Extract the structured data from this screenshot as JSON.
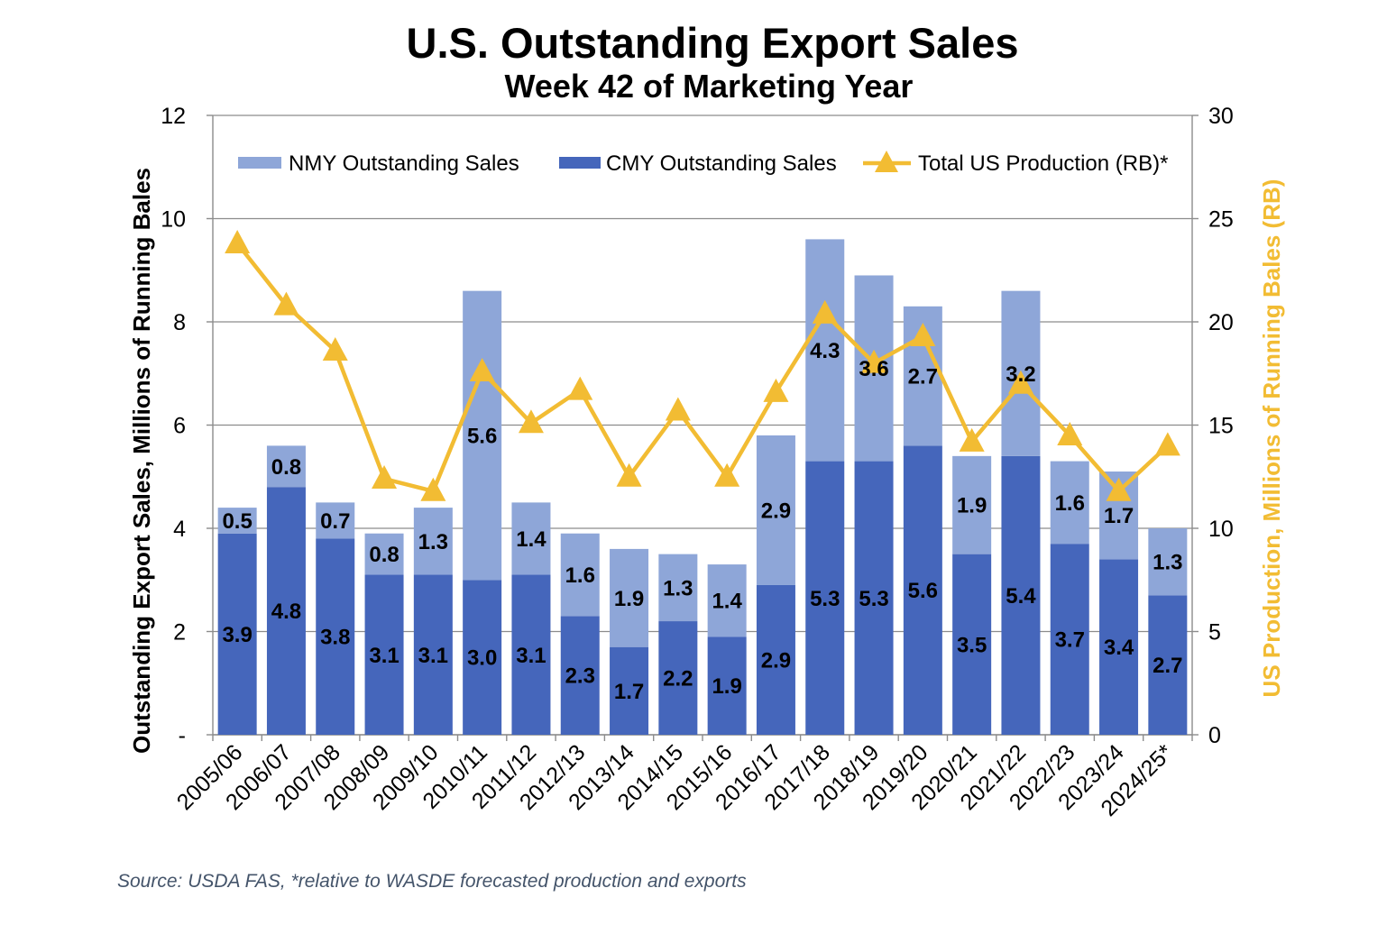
{
  "chart_data": {
    "type": "bar",
    "stacked": true,
    "title": "U.S. Outstanding Export Sales",
    "subtitle": "Week 42 of Marketing Year",
    "categories": [
      "2005/06",
      "2006/07",
      "2007/08",
      "2008/09",
      "2009/10",
      "2010/11",
      "2011/12",
      "2012/13",
      "2013/14",
      "2014/15",
      "2015/16",
      "2016/17",
      "2017/18",
      "2018/19",
      "2019/20",
      "2020/21",
      "2021/22",
      "2022/23",
      "2023/24",
      "2024/25*"
    ],
    "series": [
      {
        "name": "NMY Outstanding Sales",
        "color": "#8EA6D8",
        "values": [
          0.5,
          0.8,
          0.7,
          0.8,
          1.3,
          5.6,
          1.4,
          1.6,
          1.9,
          1.3,
          1.4,
          2.9,
          4.3,
          3.6,
          2.7,
          1.9,
          3.2,
          1.6,
          1.7,
          1.3
        ]
      },
      {
        "name": "CMY Outstanding Sales",
        "color": "#4566BB",
        "values": [
          3.9,
          4.8,
          3.8,
          3.1,
          3.1,
          3.0,
          3.1,
          2.3,
          1.7,
          2.2,
          1.9,
          2.9,
          5.3,
          5.3,
          5.6,
          3.5,
          5.4,
          3.7,
          3.4,
          2.7
        ]
      }
    ],
    "line_series": {
      "name": "Total US Production (RB)*",
      "color": "#F2BC33",
      "marker": "triangle",
      "values": [
        23.8,
        20.8,
        18.6,
        12.4,
        11.8,
        17.6,
        15.1,
        16.7,
        12.5,
        15.7,
        12.5,
        16.6,
        20.4,
        18.0,
        19.3,
        14.2,
        17.0,
        14.5,
        11.8,
        14.0
      ]
    },
    "ylabel": "Outstanding Export Sales, Millions of Running Bales",
    "y2label": "US Production, Millions of Running Bales (RB)",
    "ylim": [
      0,
      12
    ],
    "y2lim": [
      0,
      30
    ],
    "yticks": [
      0,
      2,
      4,
      6,
      8,
      10,
      12
    ],
    "ytick_labels": [
      "-",
      "2",
      "4",
      "6",
      "8",
      "10",
      "12"
    ],
    "y2ticks": [
      0,
      5,
      10,
      15,
      20,
      25,
      30
    ],
    "grid": true,
    "legend": "top"
  },
  "source_note": "Source: USDA FAS, *relative to WASDE forecasted production and exports"
}
